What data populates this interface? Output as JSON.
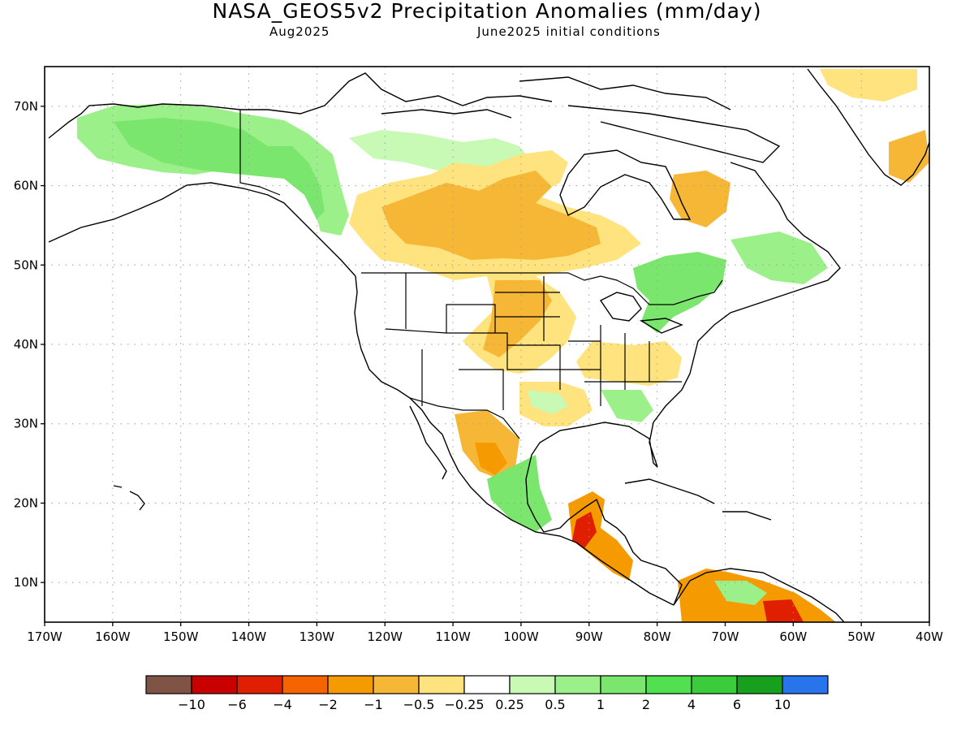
{
  "title": "NASA_GEOS5v2 Precipitation Anomalies (mm/day)",
  "subtitle_left": "Aug2025",
  "subtitle_right": "June2025 initial conditions",
  "map": {
    "projection": "equirectangular",
    "lon_range": [
      -170,
      -40
    ],
    "lat_range": [
      5,
      75
    ],
    "lon_ticks": [
      "170W",
      "160W",
      "150W",
      "140W",
      "130W",
      "120W",
      "110W",
      "100W",
      "90W",
      "80W",
      "70W",
      "60W",
      "50W",
      "40W"
    ],
    "lat_ticks": [
      "10N",
      "20N",
      "30N",
      "40N",
      "50N",
      "60N",
      "70N"
    ],
    "gridlines": "dotted"
  },
  "colorbar": {
    "colors": [
      "#7f5447",
      "#c80000",
      "#e01e00",
      "#f56400",
      "#f59a00",
      "#f5b735",
      "#fee37f",
      "#ffffff",
      "#c8fab6",
      "#9cf08a",
      "#7ae66e",
      "#50e050",
      "#3acc3a",
      "#17a01d",
      "#2774ec"
    ],
    "labels": [
      "−10",
      "−6",
      "−4",
      "−2",
      "−1",
      "−0.5",
      "−0.25",
      "0.25",
      "0.5",
      "1",
      "2",
      "4",
      "6",
      "10"
    ]
  }
}
